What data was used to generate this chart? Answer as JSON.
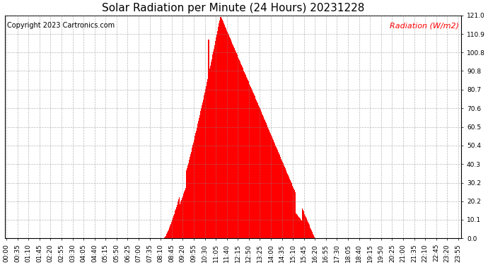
{
  "title": "Solar Radiation per Minute (24 Hours) 20231228",
  "copyright_text": "Copyright 2023 Cartronics.com",
  "ylabel": "Radiation (W/m2)",
  "ylabel_color": "#ff0000",
  "copyright_color": "#000000",
  "bar_color": "#ff0000",
  "background_color": "#ffffff",
  "plot_bg_color": "#ffffff",
  "grid_color": "#888888",
  "ymax": 121.0,
  "ymin": 0.0,
  "yticks": [
    0.0,
    10.1,
    20.2,
    30.2,
    40.3,
    50.4,
    60.5,
    70.6,
    80.7,
    90.8,
    100.8,
    110.9,
    121.0
  ],
  "hline_color": "#ff0000",
  "total_minutes": 1440,
  "title_fontsize": 11,
  "copyright_fontsize": 7,
  "ylabel_fontsize": 8,
  "tick_fontsize": 6.5,
  "xtick_interval": 35,
  "rise_min": 500,
  "set_min": 980,
  "peak_min": 680
}
